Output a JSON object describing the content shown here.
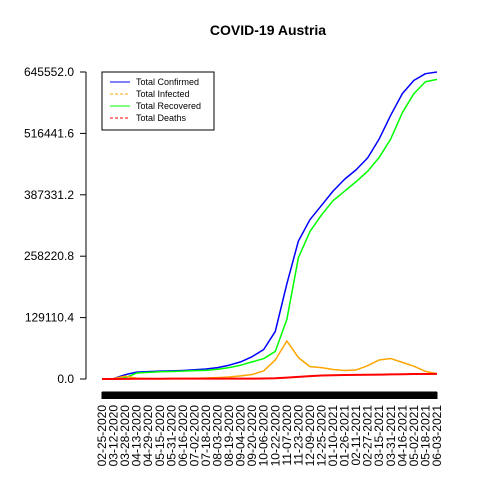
{
  "chart_data": {
    "type": "line",
    "title": "COVID-19 Austria",
    "xlabel": "",
    "ylabel": "",
    "ylim": [
      0,
      645552.0
    ],
    "yticks": [
      "0.0",
      "129110.4",
      "258220.8",
      "387331.2",
      "516441.6",
      "645552.0"
    ],
    "ytick_values": [
      0,
      129110.4,
      258220.8,
      387331.2,
      516441.6,
      645552.0
    ],
    "x_dates": [
      "02-25-2020",
      "03-12-2020",
      "03-28-2020",
      "04-13-2020",
      "04-29-2020",
      "05-15-2020",
      "05-31-2020",
      "06-16-2020",
      "07-02-2020",
      "07-18-2020",
      "08-03-2020",
      "08-19-2020",
      "09-04-2020",
      "09-20-2020",
      "10-06-2020",
      "10-22-2020",
      "11-07-2020",
      "11-23-2020",
      "12-09-2020",
      "12-25-2020",
      "01-10-2021",
      "01-26-2021",
      "02-11-2021",
      "02-27-2021",
      "03-15-2021",
      "03-31-2021",
      "04-16-2021",
      "05-02-2021",
      "05-18-2021",
      "06-03-2021"
    ],
    "legend_position": "top-left",
    "grid": false,
    "series": [
      {
        "name": "Total Confirmed",
        "color": "#0000ff",
        "dash": "solid",
        "values": [
          2,
          800,
          9000,
          14500,
          15500,
          16500,
          17000,
          18000,
          19500,
          21000,
          24000,
          29000,
          36000,
          47000,
          62000,
          100000,
          200000,
          290000,
          335000,
          365000,
          395000,
          420000,
          440000,
          465000,
          505000,
          555000,
          600000,
          628000,
          642000,
          645552
        ]
      },
      {
        "name": "Total Infected",
        "color": "#ffa500",
        "dash": "dashed",
        "values": [
          2,
          700,
          6000,
          1500,
          800,
          500,
          500,
          700,
          1300,
          2000,
          3000,
          4200,
          6500,
          9500,
          17000,
          40000,
          80000,
          45000,
          26000,
          24000,
          20000,
          18000,
          19000,
          28000,
          40000,
          43000,
          35000,
          27000,
          16000,
          11000
        ]
      },
      {
        "name": "Total Recovered",
        "color": "#00ff00",
        "dash": "solid",
        "values": [
          0,
          50,
          2500,
          12500,
          14000,
          15300,
          15800,
          16600,
          17500,
          18200,
          20500,
          24000,
          29000,
          36000,
          43000,
          58000,
          125000,
          255000,
          310000,
          345000,
          375000,
          395000,
          415000,
          437000,
          466000,
          505000,
          560000,
          600000,
          625000,
          630000
        ]
      },
      {
        "name": "Total Deaths",
        "color": "#ff0000",
        "dash": "dashed",
        "values": [
          0,
          5,
          150,
          500,
          600,
          640,
          670,
          700,
          710,
          720,
          730,
          740,
          760,
          800,
          950,
          1500,
          3000,
          4500,
          6000,
          7300,
          8000,
          8300,
          8600,
          8900,
          9200,
          9600,
          10100,
          10400,
          10600,
          10700
        ]
      }
    ]
  }
}
